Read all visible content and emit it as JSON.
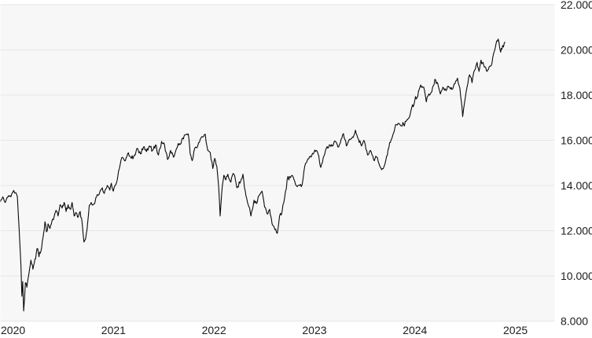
{
  "style": {
    "page_bg": "#ffffff",
    "plot_bg": "#f7f7f7",
    "grid_color": "#e6e6e6",
    "line_color": "#0a0a0a",
    "label_color": "#1c1c1c"
  },
  "axes": {
    "y_tick_labels": [
      "22.000",
      "20.000",
      "18.000",
      "16.000",
      "14.000",
      "12.000",
      "10.000",
      "8.000"
    ],
    "y_tick_values": [
      22000,
      20000,
      18000,
      16000,
      14000,
      12000,
      10000,
      8000
    ],
    "x_tick_labels": [
      "2020",
      "2021",
      "2022",
      "2023",
      "2024",
      "2025"
    ],
    "x_tick_years": [
      2020,
      2021,
      2022,
      2023,
      2024,
      2025
    ]
  },
  "chart_data": {
    "type": "line",
    "title": "",
    "xlabel": "",
    "ylabel": "",
    "legend": "none",
    "grid": "horizontal",
    "x_unit": "decimal_year",
    "xlim": [
      2019.99,
      2025.05
    ],
    "ylim": [
      8000,
      22000
    ],
    "series": [
      {
        "name": "index-price",
        "x": [
          2019.99,
          2020.02,
          2020.045,
          2020.075,
          2020.1,
          2020.13,
          2020.15,
          2020.165,
          2020.175,
          2020.19,
          2020.2,
          2020.21,
          2020.218,
          2020.228,
          2020.245,
          2020.26,
          2020.28,
          2020.3,
          2020.32,
          2020.34,
          2020.36,
          2020.38,
          2020.4,
          2020.42,
          2020.44,
          2020.455,
          2020.47,
          2020.49,
          2020.51,
          2020.53,
          2020.55,
          2020.57,
          2020.59,
          2020.61,
          2020.63,
          2020.65,
          2020.67,
          2020.69,
          2020.71,
          2020.73,
          2020.75,
          2020.77,
          2020.79,
          2020.81,
          2020.828,
          2020.845,
          2020.865,
          2020.88,
          2020.9,
          2020.92,
          2020.94,
          2020.96,
          2020.985,
          2021.01,
          2021.03,
          2021.06,
          2021.085,
          2021.1,
          2021.12,
          2021.15,
          2021.18,
          2021.21,
          2021.24,
          2021.27,
          2021.3,
          2021.33,
          2021.36,
          2021.39,
          2021.42,
          2021.45,
          2021.48,
          2021.51,
          2021.54,
          2021.57,
          2021.6,
          2021.63,
          2021.66,
          2021.69,
          2021.72,
          2021.75,
          2021.78,
          2021.81,
          2021.84,
          2021.865,
          2021.885,
          2021.905,
          2021.93,
          2021.96,
          2021.985,
          2022.01,
          2022.035,
          2022.06,
          2022.085,
          2022.11,
          2022.13,
          2022.15,
          2022.168,
          2022.183,
          2022.2,
          2022.22,
          2022.24,
          2022.26,
          2022.29,
          2022.32,
          2022.35,
          2022.38,
          2022.41,
          2022.44,
          2022.47,
          2022.49,
          2022.52,
          2022.545,
          2022.57,
          2022.6,
          2022.625,
          2022.65,
          2022.675,
          2022.7,
          2022.728,
          2022.752,
          2022.775,
          2022.8,
          2022.825,
          2022.85,
          2022.875,
          2022.9,
          2022.925,
          2022.95,
          2022.975,
          2023.0,
          2023.025,
          2023.05,
          2023.08,
          2023.11,
          2023.14,
          2023.165,
          2023.185,
          2023.21,
          2023.24,
          2023.27,
          2023.3,
          2023.33,
          2023.355,
          2023.38,
          2023.41,
          2023.44,
          2023.47,
          2023.5,
          2023.53,
          2023.56,
          2023.59,
          2023.62,
          2023.65,
          2023.68,
          2023.71,
          2023.74,
          2023.765,
          2023.79,
          2023.815,
          2023.84,
          2023.87,
          2023.9,
          2023.93,
          2023.955,
          2023.98,
          2024.01,
          2024.04,
          2024.065,
          2024.09,
          2024.12,
          2024.15,
          2024.18,
          2024.21,
          2024.235,
          2024.26,
          2024.29,
          2024.32,
          2024.35,
          2024.375,
          2024.4,
          2024.43,
          2024.46,
          2024.49,
          2024.52,
          2024.545,
          2024.57,
          2024.59,
          2024.597,
          2024.615,
          2024.64,
          2024.665,
          2024.69,
          2024.715,
          2024.74,
          2024.76,
          2024.78,
          2024.8,
          2024.82,
          2024.84,
          2024.86,
          2024.88,
          2024.905,
          2024.93,
          2024.95,
          2024.965,
          2024.975,
          2024.995,
          2025.02
        ],
        "y": [
          13250,
          13500,
          13250,
          13550,
          13500,
          13780,
          13680,
          13500,
          12650,
          11400,
          10500,
          9100,
          9750,
          8450,
          9700,
          9500,
          10100,
          10700,
          10300,
          10750,
          11200,
          10850,
          11100,
          11700,
          12400,
          11950,
          12300,
          12100,
          12450,
          12600,
          12900,
          12650,
          13150,
          13000,
          13250,
          12850,
          13150,
          12950,
          13250,
          12650,
          12800,
          12600,
          12850,
          12350,
          11500,
          11650,
          12350,
          13100,
          13250,
          13150,
          13300,
          13600,
          13700,
          13900,
          13650,
          14000,
          13800,
          14100,
          13750,
          14100,
          14750,
          15250,
          15100,
          15450,
          15200,
          15350,
          15650,
          15400,
          15700,
          15500,
          15750,
          15550,
          15800,
          15350,
          15950,
          15800,
          15150,
          15550,
          15250,
          15650,
          15850,
          16100,
          16250,
          16290,
          15400,
          15100,
          15650,
          15750,
          16050,
          16150,
          16270,
          15550,
          15450,
          14750,
          15200,
          14850,
          13950,
          12650,
          13750,
          14450,
          14250,
          14500,
          14150,
          14500,
          13900,
          14100,
          14500,
          13550,
          13050,
          12650,
          13350,
          13200,
          13550,
          13750,
          13050,
          12750,
          12950,
          12300,
          12050,
          11880,
          12650,
          12850,
          13450,
          14250,
          14400,
          14450,
          14200,
          13950,
          14000,
          14050,
          14850,
          15100,
          15300,
          15400,
          15550,
          15300,
          14800,
          15250,
          15650,
          15800,
          15750,
          15950,
          15700,
          15900,
          16300,
          15750,
          16050,
          16150,
          16450,
          16050,
          15750,
          15950,
          15350,
          15550,
          15150,
          15250,
          14950,
          14700,
          14850,
          15300,
          15900,
          16200,
          16700,
          16750,
          16650,
          16700,
          16900,
          17000,
          17450,
          17750,
          17950,
          18450,
          18350,
          17700,
          18050,
          18150,
          18700,
          18500,
          18050,
          18350,
          18200,
          18350,
          18250,
          18500,
          18750,
          18300,
          17500,
          17050,
          17650,
          18350,
          18900,
          18550,
          19100,
          19450,
          19050,
          19550,
          19450,
          19250,
          19050,
          19250,
          19300,
          19850,
          20300,
          20480,
          20100,
          19900,
          20200,
          20350
        ]
      }
    ]
  }
}
